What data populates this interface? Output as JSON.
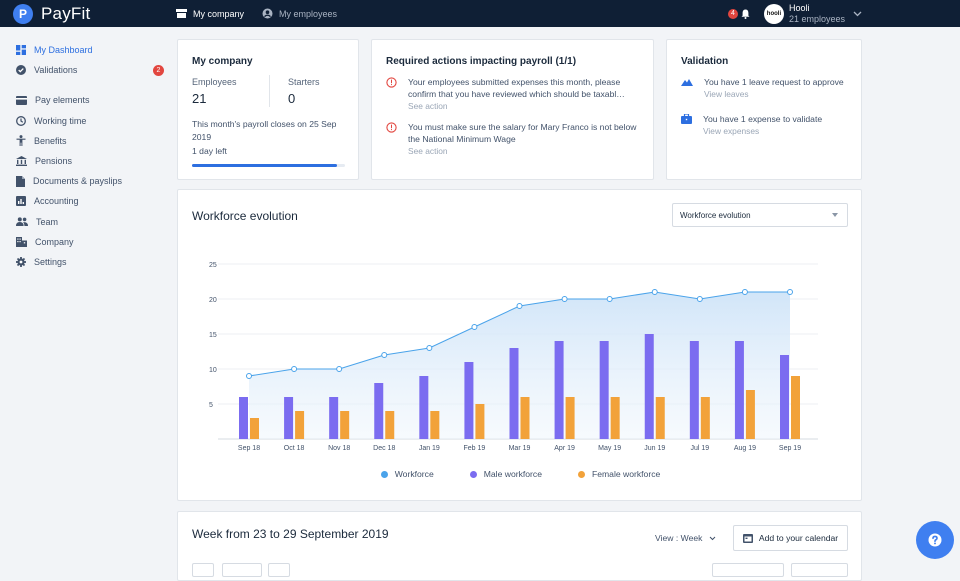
{
  "brand": {
    "name": "PayFit",
    "accent": "#3f7ff0"
  },
  "topnav": {
    "items": [
      {
        "label": "My company",
        "active": true
      },
      {
        "label": "My employees",
        "active": false
      }
    ]
  },
  "header": {
    "notification_count": "4",
    "company_avatar_text": "hooli",
    "company_name": "Hooli",
    "company_sub": "21 employees"
  },
  "sidebar": {
    "items": [
      {
        "label": "My Dashboard",
        "icon": "dashboard-icon",
        "active": true
      },
      {
        "label": "Validations",
        "icon": "check-circle-icon",
        "badge": "2"
      },
      {
        "label": "Pay elements",
        "icon": "credit-card-icon"
      },
      {
        "label": "Working time",
        "icon": "clock-icon"
      },
      {
        "label": "Benefits",
        "icon": "person-icon"
      },
      {
        "label": "Pensions",
        "icon": "bank-icon"
      },
      {
        "label": "Documents & payslips",
        "icon": "document-icon"
      },
      {
        "label": "Accounting",
        "icon": "chart-icon"
      },
      {
        "label": "Team",
        "icon": "team-icon"
      },
      {
        "label": "Company",
        "icon": "building-icon"
      },
      {
        "label": "Settings",
        "icon": "gear-icon"
      }
    ]
  },
  "company_card": {
    "title": "My company",
    "employees_label": "Employees",
    "employees_value": "21",
    "starters_label": "Starters",
    "starters_value": "0",
    "payroll_text": "This month's payroll closes on 25 Sep 2019",
    "days_left": "1 day left",
    "progress": 0.95
  },
  "required_card": {
    "title": "Required actions impacting payroll (1/1)",
    "actions": [
      {
        "text": "Your employees submitted expenses this month, please confirm that you have reviewed which should be taxabl…",
        "link": "See action"
      },
      {
        "text": "You must make sure the salary for Mary Franco is not below the National Minimum Wage",
        "link": "See action"
      }
    ]
  },
  "validation_card": {
    "title": "Validation",
    "items": [
      {
        "text": "You have 1 leave request to approve",
        "link": "View leaves",
        "icon": "mountain-icon"
      },
      {
        "text": "You have 1 expense to validate",
        "link": "View expenses",
        "icon": "briefcase-icon"
      }
    ]
  },
  "workforce_card": {
    "title": "Workforce evolution",
    "select_value": "Workforce evolution"
  },
  "chart_data": {
    "type": "bar",
    "categories": [
      "Sep 18",
      "Oct 18",
      "Nov 18",
      "Dec 18",
      "Jan 19",
      "Feb 19",
      "Mar 19",
      "Apr 19",
      "May 19",
      "Jun 19",
      "Jul 19",
      "Aug 19",
      "Sep 19"
    ],
    "series": [
      {
        "name": "Workforce",
        "type": "area",
        "color": "#4aa3ea",
        "values": [
          9,
          10,
          10,
          12,
          13,
          16,
          19,
          20,
          20,
          21,
          20,
          21,
          21
        ]
      },
      {
        "name": "Male workforce",
        "type": "bar",
        "color": "#7b6cf0",
        "values": [
          6,
          6,
          6,
          8,
          9,
          11,
          13,
          14,
          14,
          15,
          14,
          14,
          12
        ]
      },
      {
        "name": "Female workforce",
        "type": "bar",
        "color": "#f2a23a",
        "values": [
          3,
          4,
          4,
          4,
          4,
          5,
          6,
          6,
          6,
          6,
          6,
          7,
          9
        ]
      }
    ],
    "yticks": [
      5,
      10,
      15,
      20,
      25
    ],
    "ylim": [
      0,
      25
    ],
    "grid": true,
    "legend": "bottom"
  },
  "week_card": {
    "title": "Week from 23 to 29 September 2019",
    "view_label": "View : Week",
    "calendar_button": "Add to your calendar"
  }
}
